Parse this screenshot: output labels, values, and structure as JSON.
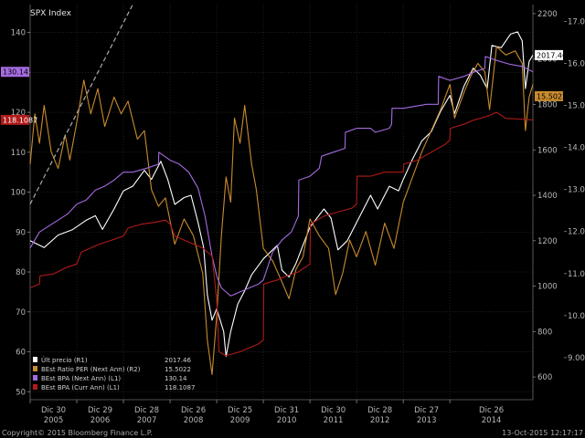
{
  "chart_data": {
    "type": "line",
    "title": "SPX Index",
    "x_tick_labels": [
      "Dic 30",
      "Dic 29",
      "Dic 28",
      "Dic 26",
      "Dic 25",
      "Dic 31",
      "Dic 30",
      "Dic 28",
      "Dic 27",
      "Dic 26"
    ],
    "x_year_labels": [
      "2005",
      "2006",
      "2007",
      "2008",
      "2009",
      "2010",
      "2011",
      "2012",
      "2013",
      "2014"
    ],
    "x_range": [
      2005.0,
      2015.78
    ],
    "left_axis": {
      "range": [
        48,
        147
      ],
      "ticks": [
        50,
        60,
        70,
        80,
        90,
        100,
        110,
        120,
        130,
        140
      ]
    },
    "r1_axis": {
      "range": [
        500,
        2240
      ],
      "ticks": [
        600,
        800,
        1000,
        1200,
        1400,
        1600,
        1800,
        2000,
        2200
      ],
      "labels": [
        "600",
        "800",
        "1000",
        "1200",
        "1400",
        "1600",
        "1800",
        "2000",
        "2200"
      ]
    },
    "r2_axis": {
      "range": [
        8.0,
        17.4
      ],
      "ticks": [
        9,
        10,
        11,
        12,
        13,
        14,
        15,
        16,
        17
      ],
      "labels": [
        "9.00",
        "10.00",
        "11.00",
        "12.00",
        "13.00",
        "14.00",
        "15.00",
        "16.00",
        "17.00"
      ]
    },
    "grid": true,
    "legend_position": "bottom-left",
    "series": [
      {
        "key": "spx",
        "axis": "r1",
        "color": "#ffffff",
        "legend": "Últ precio  (R1)",
        "last": "2017.46",
        "points": [
          [
            2005.0,
            1200
          ],
          [
            2005.3,
            1170
          ],
          [
            2005.6,
            1225
          ],
          [
            2005.9,
            1248
          ],
          [
            2006.2,
            1290
          ],
          [
            2006.4,
            1310
          ],
          [
            2006.55,
            1250
          ],
          [
            2006.8,
            1340
          ],
          [
            2007.0,
            1420
          ],
          [
            2007.2,
            1440
          ],
          [
            2007.45,
            1510
          ],
          [
            2007.6,
            1470
          ],
          [
            2007.8,
            1550
          ],
          [
            2007.95,
            1470
          ],
          [
            2008.1,
            1360
          ],
          [
            2008.3,
            1390
          ],
          [
            2008.45,
            1400
          ],
          [
            2008.6,
            1280
          ],
          [
            2008.72,
            1170
          ],
          [
            2008.8,
            960
          ],
          [
            2008.9,
            850
          ],
          [
            2009.0,
            900
          ],
          [
            2009.15,
            800
          ],
          [
            2009.2,
            690
          ],
          [
            2009.3,
            800
          ],
          [
            2009.45,
            920
          ],
          [
            2009.6,
            980
          ],
          [
            2009.75,
            1050
          ],
          [
            2010.0,
            1120
          ],
          [
            2010.3,
            1180
          ],
          [
            2010.4,
            1070
          ],
          [
            2010.55,
            1040
          ],
          [
            2010.7,
            1100
          ],
          [
            2011.0,
            1260
          ],
          [
            2011.3,
            1340
          ],
          [
            2011.45,
            1300
          ],
          [
            2011.6,
            1160
          ],
          [
            2011.8,
            1200
          ],
          [
            2012.0,
            1280
          ],
          [
            2012.3,
            1400
          ],
          [
            2012.45,
            1340
          ],
          [
            2012.7,
            1440
          ],
          [
            2012.9,
            1420
          ],
          [
            2013.0,
            1470
          ],
          [
            2013.2,
            1560
          ],
          [
            2013.4,
            1640
          ],
          [
            2013.6,
            1680
          ],
          [
            2013.8,
            1770
          ],
          [
            2014.0,
            1840
          ],
          [
            2014.1,
            1760
          ],
          [
            2014.3,
            1880
          ],
          [
            2014.5,
            1960
          ],
          [
            2014.65,
            1930
          ],
          [
            2014.8,
            1870
          ],
          [
            2014.9,
            2060
          ],
          [
            2015.1,
            2050
          ],
          [
            2015.3,
            2110
          ],
          [
            2015.45,
            2120
          ],
          [
            2015.55,
            2080
          ],
          [
            2015.62,
            1870
          ],
          [
            2015.7,
            1990
          ],
          [
            2015.78,
            2017.46
          ]
        ]
      },
      {
        "key": "per",
        "axis": "r2",
        "color": "#c88b2e",
        "legend": "BEst Ratio PER (Next Ann) (R2)",
        "last": "15.5022",
        "points": [
          [
            2005.0,
            13.6
          ],
          [
            2005.1,
            14.8
          ],
          [
            2005.2,
            14.1
          ],
          [
            2005.3,
            15.0
          ],
          [
            2005.45,
            13.9
          ],
          [
            2005.6,
            13.5
          ],
          [
            2005.75,
            14.3
          ],
          [
            2005.85,
            13.7
          ],
          [
            2006.0,
            14.6
          ],
          [
            2006.15,
            15.6
          ],
          [
            2006.3,
            14.8
          ],
          [
            2006.45,
            15.4
          ],
          [
            2006.6,
            14.5
          ],
          [
            2006.8,
            15.2
          ],
          [
            2006.95,
            14.8
          ],
          [
            2007.1,
            15.1
          ],
          [
            2007.3,
            14.2
          ],
          [
            2007.45,
            14.4
          ],
          [
            2007.6,
            13.0
          ],
          [
            2007.75,
            12.6
          ],
          [
            2007.9,
            12.8
          ],
          [
            2008.1,
            11.7
          ],
          [
            2008.3,
            12.3
          ],
          [
            2008.5,
            11.9
          ],
          [
            2008.7,
            11.0
          ],
          [
            2008.8,
            9.4
          ],
          [
            2008.9,
            8.6
          ],
          [
            2009.0,
            10.0
          ],
          [
            2009.1,
            11.9
          ],
          [
            2009.2,
            13.3
          ],
          [
            2009.3,
            12.7
          ],
          [
            2009.38,
            14.7
          ],
          [
            2009.5,
            14.1
          ],
          [
            2009.6,
            15.0
          ],
          [
            2009.75,
            13.6
          ],
          [
            2009.85,
            13.0
          ],
          [
            2010.0,
            11.6
          ],
          [
            2010.2,
            11.3
          ],
          [
            2010.4,
            10.8
          ],
          [
            2010.55,
            10.4
          ],
          [
            2010.7,
            11.1
          ],
          [
            2010.85,
            11.4
          ],
          [
            2011.0,
            12.3
          ],
          [
            2011.2,
            11.9
          ],
          [
            2011.4,
            11.6
          ],
          [
            2011.55,
            10.5
          ],
          [
            2011.7,
            11.0
          ],
          [
            2011.85,
            11.8
          ],
          [
            2012.0,
            11.4
          ],
          [
            2012.2,
            12.0
          ],
          [
            2012.4,
            11.2
          ],
          [
            2012.6,
            12.2
          ],
          [
            2012.8,
            11.6
          ],
          [
            2013.0,
            12.7
          ],
          [
            2013.2,
            13.3
          ],
          [
            2013.4,
            13.9
          ],
          [
            2013.6,
            14.4
          ],
          [
            2013.8,
            14.9
          ],
          [
            2014.0,
            15.5
          ],
          [
            2014.1,
            14.7
          ],
          [
            2014.3,
            15.3
          ],
          [
            2014.45,
            15.7
          ],
          [
            2014.6,
            16.0
          ],
          [
            2014.75,
            15.8
          ],
          [
            2014.85,
            14.9
          ],
          [
            2015.0,
            16.4
          ],
          [
            2015.2,
            16.2
          ],
          [
            2015.4,
            16.3
          ],
          [
            2015.55,
            16.0
          ],
          [
            2015.62,
            14.4
          ],
          [
            2015.7,
            15.2
          ],
          [
            2015.78,
            15.5022
          ]
        ]
      },
      {
        "key": "bpa_next",
        "axis": "left",
        "color": "#a46be0",
        "legend": "BEst BPA (Next Ann)  (L1)",
        "last": "130.14",
        "points": [
          [
            2005.0,
            86
          ],
          [
            2005.2,
            90
          ],
          [
            2005.4,
            91.5
          ],
          [
            2005.6,
            93
          ],
          [
            2005.8,
            94.5
          ],
          [
            2006.0,
            97
          ],
          [
            2006.2,
            98
          ],
          [
            2006.4,
            100.5
          ],
          [
            2006.6,
            101.5
          ],
          [
            2006.8,
            103
          ],
          [
            2007.0,
            105
          ],
          [
            2007.2,
            105
          ],
          [
            2007.5,
            106
          ],
          [
            2007.75,
            107
          ],
          [
            2007.76,
            110
          ],
          [
            2008.0,
            108
          ],
          [
            2008.2,
            107
          ],
          [
            2008.4,
            105
          ],
          [
            2008.6,
            101
          ],
          [
            2008.75,
            94
          ],
          [
            2008.9,
            84
          ],
          [
            2009.0,
            79
          ],
          [
            2009.1,
            76
          ],
          [
            2009.3,
            74
          ],
          [
            2009.5,
            75
          ],
          [
            2009.7,
            76
          ],
          [
            2009.9,
            77
          ],
          [
            2010.0,
            78
          ],
          [
            2010.2,
            85
          ],
          [
            2010.4,
            88
          ],
          [
            2010.6,
            90
          ],
          [
            2010.75,
            94
          ],
          [
            2010.76,
            103
          ],
          [
            2011.0,
            104
          ],
          [
            2011.2,
            106
          ],
          [
            2011.25,
            109
          ],
          [
            2011.5,
            110
          ],
          [
            2011.75,
            111
          ],
          [
            2011.76,
            115
          ],
          [
            2012.0,
            116
          ],
          [
            2012.3,
            116
          ],
          [
            2012.4,
            115
          ],
          [
            2012.7,
            116
          ],
          [
            2012.75,
            117
          ],
          [
            2012.76,
            121
          ],
          [
            2013.0,
            121
          ],
          [
            2013.5,
            122
          ],
          [
            2013.75,
            122
          ],
          [
            2013.76,
            129
          ],
          [
            2014.0,
            128
          ],
          [
            2014.3,
            129
          ],
          [
            2014.5,
            130
          ],
          [
            2014.75,
            131
          ],
          [
            2014.76,
            134
          ],
          [
            2015.0,
            133
          ],
          [
            2015.3,
            132
          ],
          [
            2015.55,
            131.5
          ],
          [
            2015.78,
            130.14
          ]
        ]
      },
      {
        "key": "bpa_curr",
        "axis": "left",
        "color": "#b01a1a",
        "legend": "BEst BPA (Curr Ann)  (L1)",
        "last": "118.1087",
        "points": [
          [
            2005.0,
            76
          ],
          [
            2005.2,
            77
          ],
          [
            2005.21,
            79
          ],
          [
            2005.5,
            79.5
          ],
          [
            2005.75,
            81
          ],
          [
            2006.0,
            82
          ],
          [
            2006.1,
            85
          ],
          [
            2006.3,
            86
          ],
          [
            2006.5,
            87
          ],
          [
            2006.75,
            88
          ],
          [
            2007.0,
            89
          ],
          [
            2007.1,
            91
          ],
          [
            2007.4,
            92
          ],
          [
            2007.7,
            92.5
          ],
          [
            2007.9,
            93
          ],
          [
            2008.0,
            92
          ],
          [
            2008.1,
            89
          ],
          [
            2008.3,
            88
          ],
          [
            2008.5,
            87
          ],
          [
            2008.7,
            86
          ],
          [
            2008.9,
            84
          ],
          [
            2009.0,
            73
          ],
          [
            2009.05,
            60
          ],
          [
            2009.2,
            59
          ],
          [
            2009.5,
            60
          ],
          [
            2009.7,
            61
          ],
          [
            2009.9,
            62
          ],
          [
            2010.0,
            63
          ],
          [
            2010.01,
            77
          ],
          [
            2010.3,
            78
          ],
          [
            2010.5,
            79
          ],
          [
            2010.75,
            80
          ],
          [
            2011.0,
            82
          ],
          [
            2011.01,
            92
          ],
          [
            2011.3,
            94
          ],
          [
            2011.6,
            95
          ],
          [
            2011.9,
            96
          ],
          [
            2012.0,
            97
          ],
          [
            2012.01,
            104
          ],
          [
            2012.3,
            104
          ],
          [
            2012.6,
            105
          ],
          [
            2012.9,
            105
          ],
          [
            2013.0,
            105
          ],
          [
            2013.01,
            107
          ],
          [
            2013.3,
            108
          ],
          [
            2013.6,
            110
          ],
          [
            2013.9,
            112
          ],
          [
            2014.0,
            113
          ],
          [
            2014.01,
            116
          ],
          [
            2014.3,
            117
          ],
          [
            2014.5,
            118
          ],
          [
            2014.8,
            119
          ],
          [
            2015.0,
            120
          ],
          [
            2015.2,
            118.5
          ],
          [
            2015.5,
            118.3
          ],
          [
            2015.78,
            118.1087
          ]
        ]
      },
      {
        "key": "trend",
        "axis": "left",
        "color": "#aaaaaa",
        "legend": "",
        "last": "",
        "points": [
          [
            2005.0,
            97
          ],
          [
            2007.2,
            147
          ]
        ]
      }
    ],
    "last_value_tags": {
      "left": [
        "130.14",
        "118.1087"
      ],
      "right": [
        "2017.46",
        "15.5022"
      ]
    }
  },
  "footer": {
    "copyright": "Copyright© 2015 Bloomberg Finance L.P.",
    "timestamp": "13-Oct-2015 12:17:17"
  }
}
